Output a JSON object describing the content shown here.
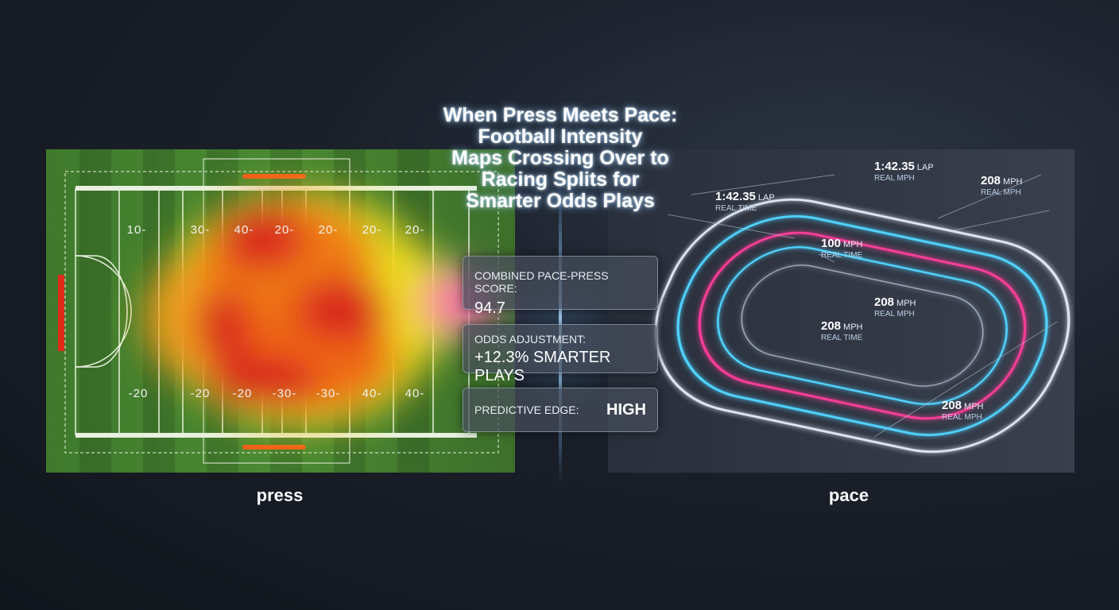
{
  "title": [
    "When Press Meets Pace:",
    "Football Intensity",
    "Maps Crossing Over to",
    "Racing Splits for",
    "Smarter Odds Plays"
  ],
  "field": {
    "top_yard_labels": [
      "10-",
      "30-",
      "40-",
      "20-",
      "20-",
      "20-",
      "20-"
    ],
    "bottom_yard_labels": [
      "-20",
      "-20",
      "-20",
      "-30-",
      "-30-",
      "40-",
      "40-"
    ],
    "caption": "press"
  },
  "panels": [
    {
      "label": "COMBINED PACE-PRESS SCORE:",
      "value": "94.7"
    },
    {
      "label": "ODDS ADJUSTMENT:",
      "value": "+12.3% SMARTER PLAYS"
    },
    {
      "label": "PREDICTIVE EDGE:",
      "value": "HIGH"
    }
  ],
  "track": {
    "caption": "pace",
    "annotations": [
      {
        "value": "1:42.35",
        "unit": "LAP",
        "sub": "REAL MPH"
      },
      {
        "value": "1:42.35",
        "unit": "LAP",
        "sub": "REAL TIME"
      },
      {
        "value": "208",
        "unit": "MPH",
        "sub": "REAL MPH"
      },
      {
        "value": "100",
        "unit": "MPH",
        "sub": "REAL TIME"
      },
      {
        "value": "208",
        "unit": "MPH",
        "sub": "REAL MPH"
      },
      {
        "value": "208",
        "unit": "MPH",
        "sub": "REAL TIME"
      },
      {
        "value": "208",
        "unit": "MPH",
        "sub": "REAL MPH"
      }
    ]
  }
}
